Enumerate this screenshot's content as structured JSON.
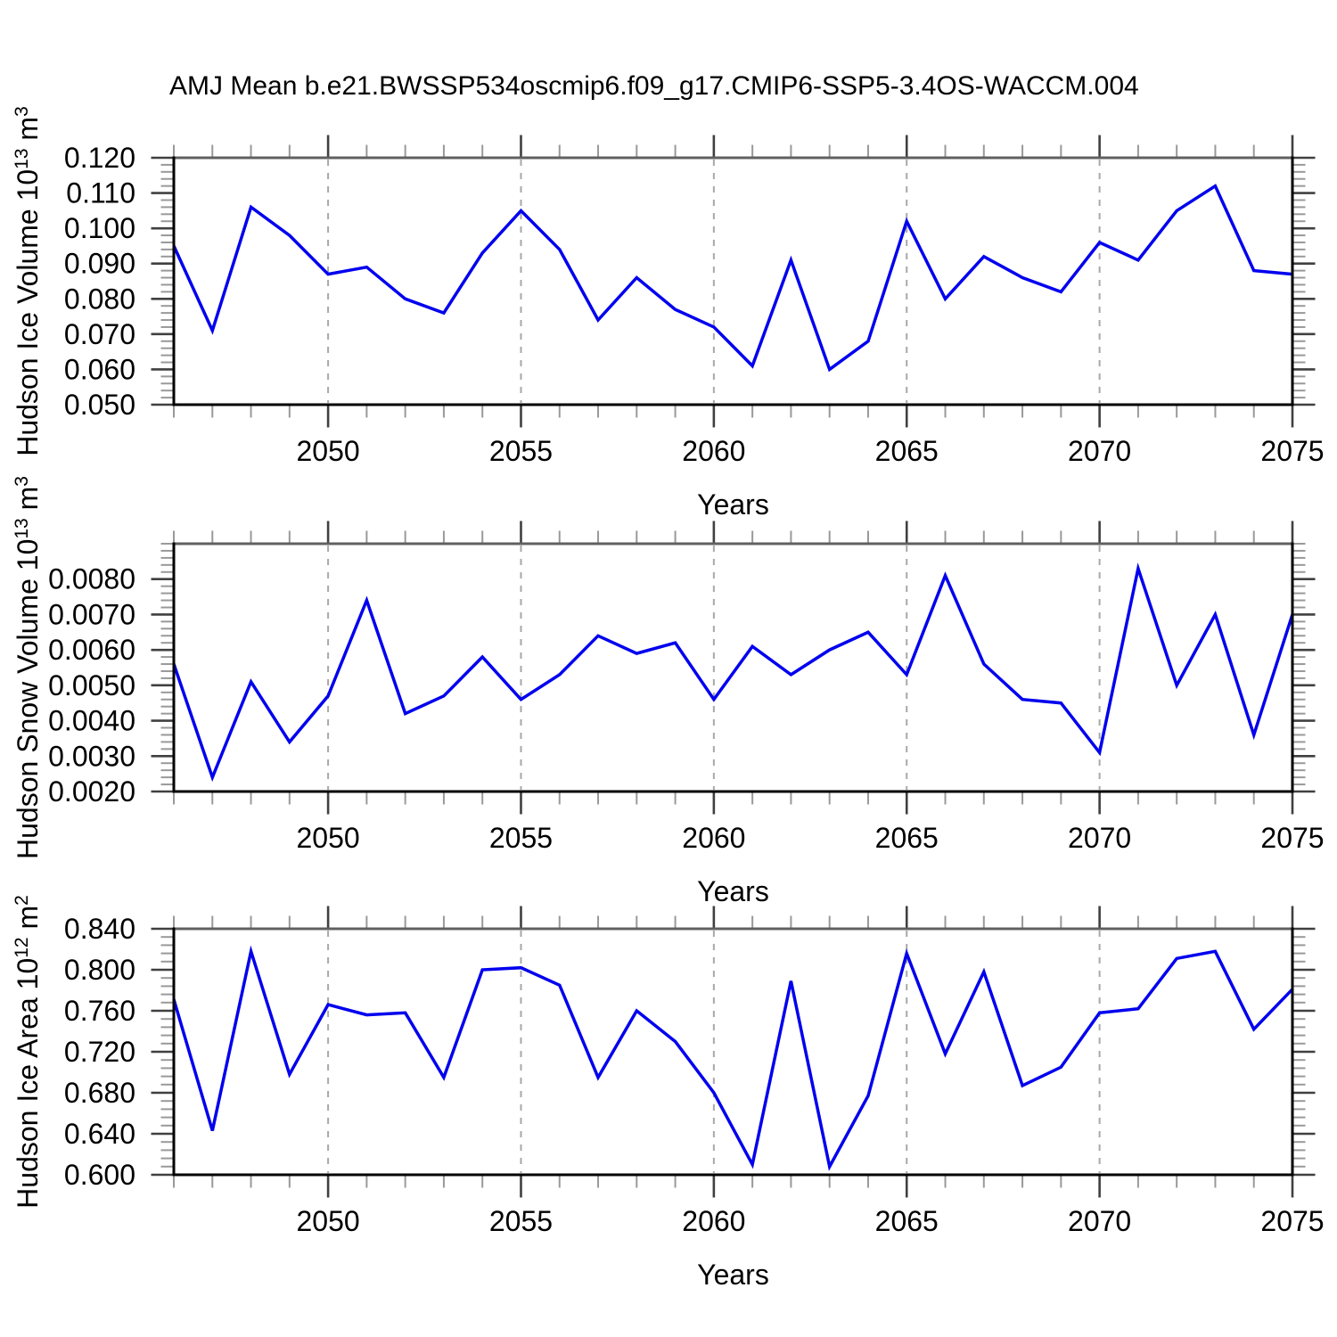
{
  "title": "AMJ Mean b.e21.BWSSP534oscmip6.f09_g17.CMIP6-SSP5-3.4OS-WACCM.004",
  "xlabel": "Years",
  "years": [
    2046,
    2047,
    2048,
    2049,
    2050,
    2051,
    2052,
    2053,
    2054,
    2055,
    2056,
    2057,
    2058,
    2059,
    2060,
    2061,
    2062,
    2063,
    2064,
    2065,
    2066,
    2067,
    2068,
    2069,
    2070,
    2071,
    2072,
    2073,
    2074,
    2075
  ],
  "colors": {
    "line": "#0000EE",
    "grid": "#A8A8A8",
    "frame": "#000000",
    "frame_top": "#606060",
    "tick_major": "#404040",
    "tick_minor": "#999999",
    "background": "#FFFFFF"
  },
  "chart_data": [
    {
      "type": "line",
      "id": "hudson-ice-volume",
      "ylabel": "Hudson Ice Volume 10^13 m^3",
      "ylabel_parts": [
        {
          "text": "Hudson Ice Volume 10"
        },
        {
          "text": "13",
          "sup": true
        },
        {
          "text": " m"
        },
        {
          "text": "3",
          "sup": true
        }
      ],
      "xlabel": "Years",
      "x_range": [
        2046,
        2075
      ],
      "ylim": [
        0.05,
        0.12
      ],
      "yticks": [
        0.05,
        0.06,
        0.07,
        0.08,
        0.09,
        0.1,
        0.11,
        0.12
      ],
      "ytick_labels": [
        "0.050",
        "0.060",
        "0.070",
        "0.080",
        "0.090",
        "0.100",
        "0.110",
        "0.120"
      ],
      "y_minor_step": 0.002,
      "xticks": [
        2050,
        2055,
        2060,
        2065,
        2070,
        2075
      ],
      "xtick_labels": [
        "2050",
        "2055",
        "2060",
        "2065",
        "2070",
        "2075"
      ],
      "grid_x": [
        2050,
        2055,
        2060,
        2065,
        2070
      ],
      "values": [
        0.095,
        0.071,
        0.106,
        0.098,
        0.087,
        0.089,
        0.08,
        0.076,
        0.093,
        0.105,
        0.094,
        0.074,
        0.086,
        0.077,
        0.072,
        0.061,
        0.091,
        0.06,
        0.068,
        0.102,
        0.08,
        0.092,
        0.086,
        0.082,
        0.096,
        0.091,
        0.105,
        0.112,
        0.088,
        0.087
      ]
    },
    {
      "type": "line",
      "id": "hudson-snow-volume",
      "ylabel": "Hudson Snow Volume 10^13 m^3",
      "ylabel_parts": [
        {
          "text": "Hudson Snow Volume 10"
        },
        {
          "text": "13",
          "sup": true
        },
        {
          "text": " m"
        },
        {
          "text": "3",
          "sup": true
        }
      ],
      "xlabel": "Years",
      "x_range": [
        2046,
        2075
      ],
      "ylim": [
        0.002,
        0.009
      ],
      "yticks": [
        0.002,
        0.003,
        0.004,
        0.005,
        0.006,
        0.007,
        0.008
      ],
      "ytick_labels": [
        "0.0020",
        "0.0030",
        "0.0040",
        "0.0050",
        "0.0060",
        "0.0070",
        "0.0080"
      ],
      "y_minor_step": 0.0002,
      "xticks": [
        2050,
        2055,
        2060,
        2065,
        2070,
        2075
      ],
      "xtick_labels": [
        "2050",
        "2055",
        "2060",
        "2065",
        "2070",
        "2075"
      ],
      "grid_x": [
        2050,
        2055,
        2060,
        2065,
        2070
      ],
      "values": [
        0.0056,
        0.0024,
        0.0051,
        0.0034,
        0.0047,
        0.0074,
        0.0042,
        0.0047,
        0.0058,
        0.0046,
        0.0053,
        0.0064,
        0.0059,
        0.0062,
        0.0046,
        0.0061,
        0.0053,
        0.006,
        0.0065,
        0.0053,
        0.0081,
        0.0056,
        0.0046,
        0.0045,
        0.0031,
        0.0083,
        0.005,
        0.007,
        0.0036,
        0.007
      ]
    },
    {
      "type": "line",
      "id": "hudson-ice-area",
      "ylabel": "Hudson Ice Area 10^12 m^2",
      "ylabel_parts": [
        {
          "text": "Hudson Ice Area 10"
        },
        {
          "text": "12",
          "sup": true
        },
        {
          "text": " m"
        },
        {
          "text": "2",
          "sup": true
        }
      ],
      "xlabel": "Years",
      "x_range": [
        2046,
        2075
      ],
      "ylim": [
        0.6,
        0.84
      ],
      "yticks": [
        0.6,
        0.64,
        0.68,
        0.72,
        0.76,
        0.8,
        0.84
      ],
      "ytick_labels": [
        "0.600",
        "0.640",
        "0.680",
        "0.720",
        "0.760",
        "0.800",
        "0.840"
      ],
      "y_minor_step": 0.008,
      "xticks": [
        2050,
        2055,
        2060,
        2065,
        2070,
        2075
      ],
      "xtick_labels": [
        "2050",
        "2055",
        "2060",
        "2065",
        "2070",
        "2075"
      ],
      "grid_x": [
        2050,
        2055,
        2060,
        2065,
        2070
      ],
      "values": [
        0.771,
        0.643,
        0.818,
        0.698,
        0.766,
        0.756,
        0.758,
        0.695,
        0.8,
        0.802,
        0.785,
        0.695,
        0.76,
        0.73,
        0.68,
        0.61,
        0.789,
        0.608,
        0.677,
        0.816,
        0.718,
        0.798,
        0.687,
        0.705,
        0.758,
        0.762,
        0.811,
        0.818,
        0.742,
        0.781
      ]
    }
  ]
}
